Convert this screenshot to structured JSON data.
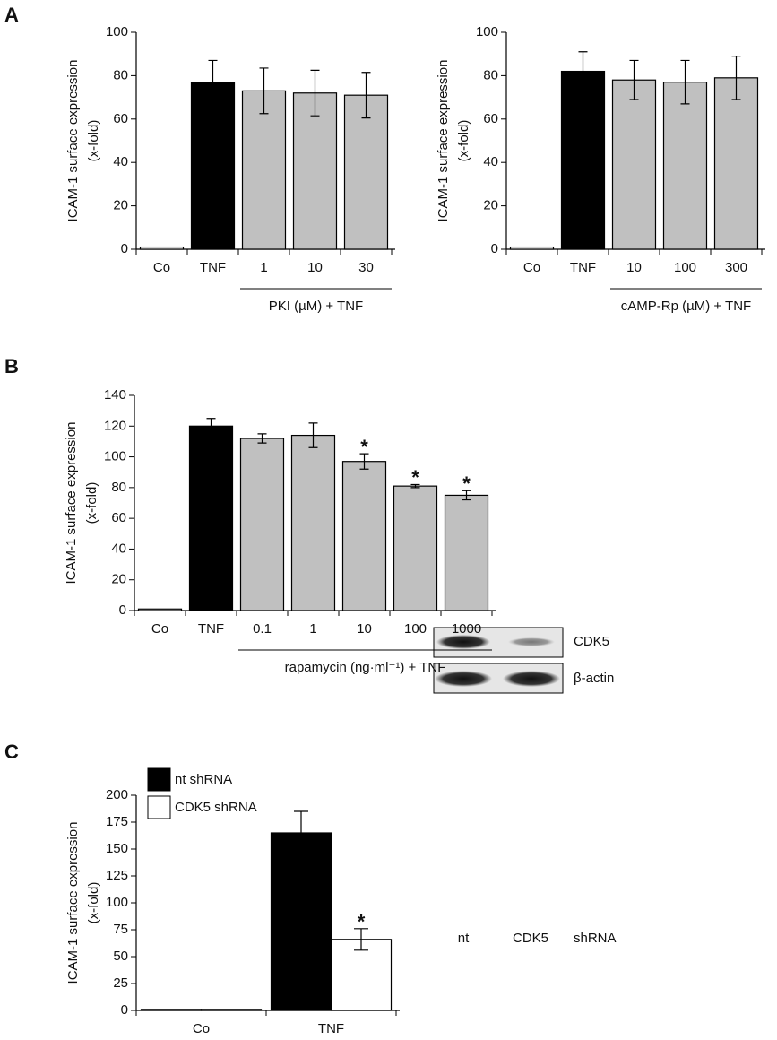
{
  "chart_data": [
    {
      "type": "bar",
      "panel": "A",
      "ylabel": [
        "ICAM-1 surface expression",
        "(x-fold)"
      ],
      "categories": [
        "Co",
        "TNF",
        "1",
        "10",
        "30"
      ],
      "values": [
        1,
        77,
        73,
        72,
        71
      ],
      "errors": [
        0,
        10,
        10.5,
        10.5,
        10.5
      ],
      "colors": [
        "#ffffff",
        "#000000",
        "#c0c0c0",
        "#c0c0c0",
        "#c0c0c0"
      ],
      "group_label": "PKI (µM) + TNF",
      "ylim": [
        0,
        100
      ],
      "yticks": [
        0,
        20,
        40,
        60,
        80,
        100
      ]
    },
    {
      "type": "bar",
      "ylabel": [
        "ICAM-1 surface expression",
        "(x-fold)"
      ],
      "categories": [
        "Co",
        "TNF",
        "10",
        "100",
        "300"
      ],
      "values": [
        1,
        82,
        78,
        77,
        79
      ],
      "errors": [
        0,
        9,
        9,
        10,
        10
      ],
      "colors": [
        "#ffffff",
        "#000000",
        "#c0c0c0",
        "#c0c0c0",
        "#c0c0c0"
      ],
      "group_label": "cAMP-Rp (µM) + TNF",
      "ylim": [
        0,
        100
      ],
      "yticks": [
        0,
        20,
        40,
        60,
        80,
        100
      ]
    },
    {
      "type": "bar",
      "panel": "B",
      "ylabel": [
        "ICAM-1 surface expression",
        "(x-fold)"
      ],
      "categories": [
        "Co",
        "TNF",
        "0.1",
        "1",
        "10",
        "100",
        "1000"
      ],
      "values": [
        1,
        120,
        112,
        114,
        97,
        81,
        75
      ],
      "errors": [
        0,
        5,
        3,
        8,
        5,
        1,
        3
      ],
      "significance": [
        null,
        null,
        null,
        null,
        "*",
        "*",
        "*"
      ],
      "colors": [
        "#ffffff",
        "#000000",
        "#c0c0c0",
        "#c0c0c0",
        "#c0c0c0",
        "#c0c0c0",
        "#c0c0c0"
      ],
      "group_label": "rapamycin (ng·ml⁻¹) + TNF",
      "ylim": [
        0,
        140
      ],
      "yticks": [
        0,
        20,
        40,
        60,
        80,
        100,
        120,
        140
      ]
    },
    {
      "type": "grouped_bar",
      "panel": "C",
      "ylabel": [
        "ICAM-1 surface expression",
        "(x-fold)"
      ],
      "categories": [
        "Co",
        "TNF"
      ],
      "series": [
        {
          "name": "nt shRNA",
          "color": "#000000",
          "values": [
            1,
            165
          ],
          "errors": [
            0,
            20
          ]
        },
        {
          "name": "CDK5 shRNA",
          "color": "#ffffff",
          "values": [
            1,
            66
          ],
          "errors": [
            0,
            10
          ],
          "significance": [
            null,
            "*"
          ]
        }
      ],
      "ylim": [
        0,
        200
      ],
      "yticks": [
        0,
        25,
        50,
        75,
        100,
        125,
        150,
        175,
        200
      ]
    }
  ],
  "blot": {
    "bands": [
      "CDK5",
      "β-actin"
    ],
    "lanes": [
      "nt",
      "CDK5"
    ],
    "suffix": "shRNA"
  }
}
